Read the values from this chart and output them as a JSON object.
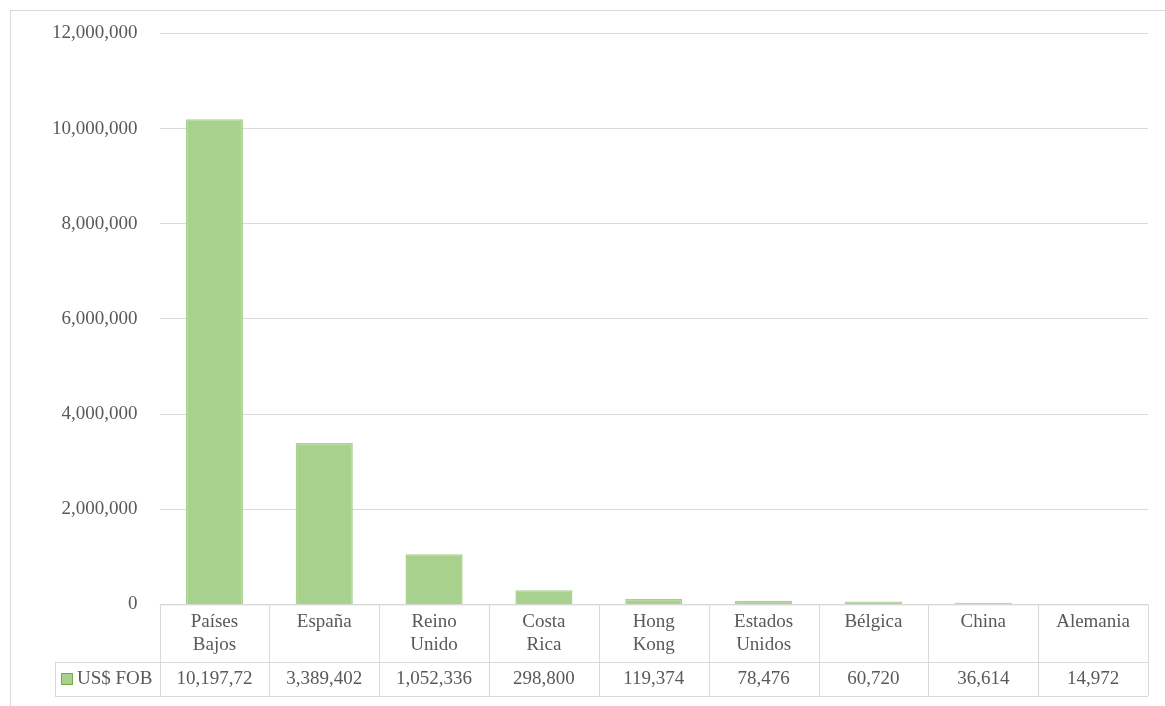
{
  "chart_data": {
    "type": "bar",
    "categories": [
      "Países Bajos",
      "España",
      "Reino Unido",
      "Costa Rica",
      "Hong Kong",
      "Estados Unidos",
      "Bélgica",
      "China",
      "Alemania"
    ],
    "series": [
      {
        "name": "US$ FOB",
        "color": "#a9d18e",
        "values": [
          10197720,
          3389402,
          1052336,
          298800,
          119374,
          78476,
          60720,
          36614,
          14972
        ],
        "value_labels": [
          "10,197,72",
          "3,389,402",
          "1,052,336",
          "298,800",
          "119,374",
          "78,476",
          "60,720",
          "36,614",
          "14,972"
        ]
      }
    ],
    "ylim": [
      0,
      12000000
    ],
    "yticks": [
      0,
      {
        "value": 2000000,
        "label": "2,000,000"
      },
      {
        "value": 4000000,
        "label": "4,000,000"
      },
      {
        "value": 6000000,
        "label": "6,000,000"
      },
      {
        "value": 8000000,
        "label": "8,000,000"
      },
      {
        "value": 10000000,
        "label": "10,000,000"
      },
      {
        "value": 12000000,
        "label": "12,000,000"
      }
    ],
    "grid": "y",
    "legend": "bottom"
  }
}
